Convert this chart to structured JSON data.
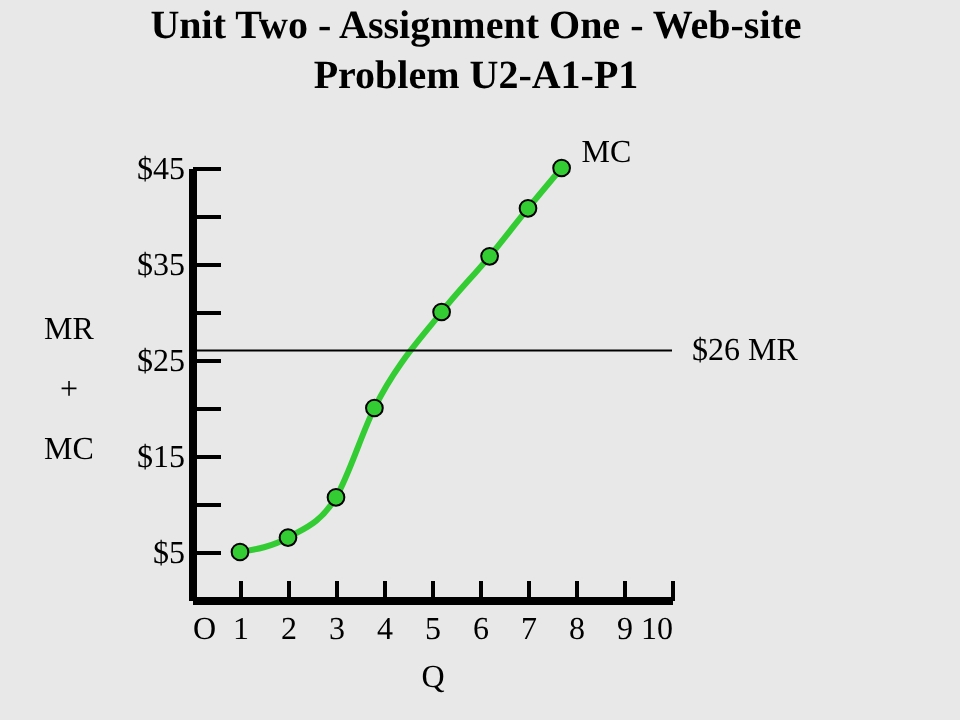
{
  "chart_data": {
    "type": "line",
    "title": "Unit Two - Assignment One - Web-site\nProblem U2-A1-P1",
    "xlabel": "Q",
    "ylabel": "MR\n+\nMC",
    "x": [
      1,
      2,
      3,
      3.8,
      5.2,
      6.2,
      7,
      7.7
    ],
    "series": [
      {
        "name": "MC",
        "color": "#33cc33",
        "values": [
          5,
          6.5,
          10.7,
          20,
          30,
          35.8,
          40.8,
          45
        ]
      }
    ],
    "xlim": [
      0,
      10
    ],
    "ylim": [
      0,
      45
    ],
    "xticks": [
      {
        "value": 0,
        "label": "O"
      },
      1,
      2,
      3,
      4,
      5,
      6,
      7,
      8,
      9,
      10
    ],
    "yticks": [
      {
        "value": 5,
        "label": "$5"
      },
      {
        "value": 10,
        "label": null
      },
      {
        "value": 15,
        "label": "$15"
      },
      {
        "value": 20,
        "label": null
      },
      {
        "value": 25,
        "label": "$25"
      },
      {
        "value": 30,
        "label": null
      },
      {
        "value": 35,
        "label": "$35"
      },
      {
        "value": 40,
        "label": null
      },
      {
        "value": 45,
        "label": "$45"
      }
    ],
    "ref_lines": [
      {
        "axis": "y",
        "value": 26,
        "label": "$26 MR",
        "color": "#000000"
      }
    ],
    "marker": "circle",
    "legend": false
  }
}
